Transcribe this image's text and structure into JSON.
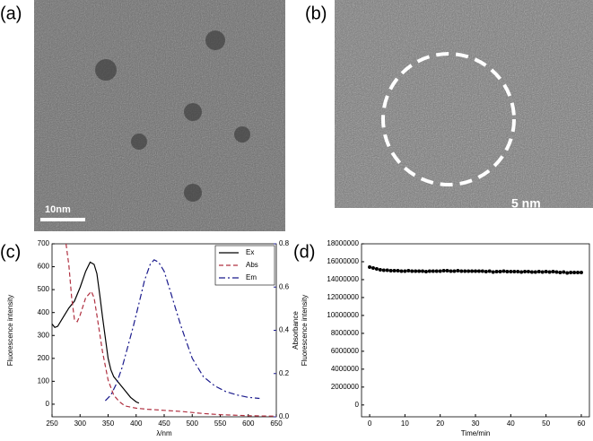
{
  "panel_labels": [
    "(a)",
    "(b)",
    "(c)",
    "(d)"
  ],
  "scale_bars": [
    "10nm",
    "5 nm"
  ],
  "chart_data": [
    {
      "type": "line",
      "xlabel": "λ/nm",
      "ylabel": "Fluorescence intensity",
      "y2label": "Absorbance",
      "xlim": [
        250,
        650
      ],
      "xticks": [
        250,
        300,
        350,
        400,
        450,
        500,
        550,
        600,
        650
      ],
      "ylim": [
        -55,
        700
      ],
      "yticks": [
        0,
        100,
        200,
        300,
        400,
        500,
        600,
        700
      ],
      "y2lim": [
        0,
        0.8
      ],
      "y2ticks": [
        0.0,
        0.2,
        0.4,
        0.6,
        0.8
      ],
      "legend": "upper right",
      "series": [
        {
          "name": "Ex",
          "color": "#000000",
          "dash": "solid",
          "x": [
            250,
            255,
            260,
            270,
            280,
            290,
            300,
            310,
            318,
            325,
            330,
            335,
            340,
            345,
            350,
            355,
            360,
            370,
            380,
            390,
            400,
            405
          ],
          "values": [
            350,
            335,
            340,
            380,
            420,
            450,
            510,
            580,
            620,
            610,
            570,
            480,
            380,
            290,
            200,
            150,
            120,
            90,
            60,
            30,
            10,
            5
          ]
        },
        {
          "name": "Abs",
          "color": "#b03040",
          "dash": "dashed",
          "axis": "y2",
          "x": [
            275,
            280,
            285,
            290,
            295,
            300,
            310,
            320,
            325,
            330,
            340,
            350,
            360,
            370,
            380,
            400,
            420,
            450,
            480,
            500,
            520,
            550,
            600,
            650
          ],
          "values": [
            0.8,
            0.7,
            0.55,
            0.45,
            0.44,
            0.47,
            0.55,
            0.58,
            0.55,
            0.47,
            0.3,
            0.17,
            0.1,
            0.07,
            0.05,
            0.04,
            0.035,
            0.03,
            0.025,
            0.02,
            0.015,
            0.01,
            0.005,
            0.003
          ]
        },
        {
          "name": "Em",
          "color": "#1a1a8c",
          "dash": "dashdot",
          "x": [
            345,
            355,
            365,
            375,
            385,
            395,
            405,
            415,
            425,
            432,
            440,
            450,
            460,
            470,
            480,
            490,
            500,
            510,
            520,
            540,
            560,
            580,
            600,
            620
          ],
          "values": [
            15,
            40,
            90,
            160,
            250,
            340,
            440,
            540,
            610,
            630,
            620,
            580,
            500,
            420,
            340,
            270,
            200,
            160,
            120,
            80,
            55,
            40,
            30,
            25
          ]
        }
      ]
    },
    {
      "type": "scatter",
      "xlabel": "Time/min",
      "ylabel": "Fluorescence intensity",
      "xlim": [
        -2.3,
        62.3
      ],
      "xticks": [
        0,
        10,
        20,
        30,
        40,
        50,
        60
      ],
      "ylim": [
        -1320000,
        18000000
      ],
      "yticks": [
        0,
        2000000,
        4000000,
        6000000,
        8000000,
        10000000,
        12000000,
        14000000,
        16000000,
        18000000
      ],
      "color": "#000000",
      "x": [
        0,
        1,
        2,
        3,
        4,
        5,
        6,
        7,
        8,
        9,
        10,
        11,
        12,
        13,
        14,
        15,
        16,
        17,
        18,
        19,
        20,
        21,
        22,
        23,
        24,
        25,
        26,
        27,
        28,
        29,
        30,
        31,
        32,
        33,
        34,
        35,
        36,
        37,
        38,
        39,
        40,
        41,
        42,
        43,
        44,
        45,
        46,
        47,
        48,
        49,
        50,
        51,
        52,
        53,
        54,
        55,
        56,
        57,
        58,
        59,
        60
      ],
      "values": [
        15400000,
        15300000,
        15200000,
        15100000,
        15050000,
        15050000,
        15000000,
        15000000,
        15000000,
        14950000,
        14950000,
        15000000,
        14950000,
        14950000,
        14950000,
        14950000,
        14900000,
        14950000,
        14950000,
        14950000,
        14950000,
        15000000,
        15000000,
        14950000,
        14950000,
        15000000,
        14950000,
        14950000,
        14950000,
        14950000,
        14950000,
        14950000,
        14950000,
        14900000,
        14950000,
        14850000,
        14900000,
        14900000,
        14950000,
        14900000,
        14900000,
        14900000,
        14900000,
        14850000,
        14900000,
        14900000,
        14850000,
        14850000,
        14900000,
        14850000,
        14900000,
        14850000,
        14900000,
        14850000,
        14800000,
        14850000,
        14750000,
        14800000,
        14800000,
        14800000,
        14800000
      ]
    }
  ]
}
